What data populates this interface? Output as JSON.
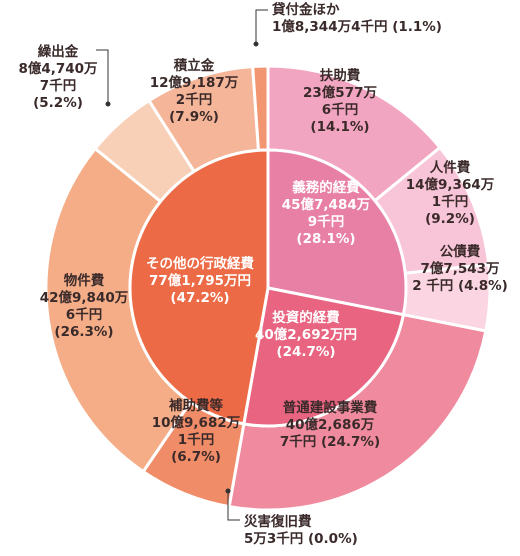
{
  "chart_data": {
    "type": "pie",
    "variant": "two-level donut",
    "title": "",
    "inner": [
      {
        "name": "義務的経費",
        "amount": "45億7,484万",
        "amount2": "9千円",
        "percent": "(28.1%)",
        "value": 28.1,
        "color": "#E87FA4"
      },
      {
        "name": "投資的経費",
        "amount": "40億2,692万円",
        "amount2": "",
        "percent": "(24.7%)",
        "value": 24.7,
        "color": "#E86480"
      },
      {
        "name": "その他の行政経費",
        "amount": "77億1,795万円",
        "amount2": "",
        "percent": "(47.2%)",
        "value": 47.2,
        "color": "#EC6A45"
      }
    ],
    "outer": [
      {
        "name": "扶助費",
        "lines": [
          "23億577万",
          "6千円",
          "(14.1%)"
        ],
        "value": 14.1,
        "color": "#F2A5C0"
      },
      {
        "name": "人件費",
        "lines": [
          "14億9,364万",
          "1千円",
          "(9.2%)"
        ],
        "value": 9.2,
        "color": "#F8C4D7"
      },
      {
        "name": "公債費",
        "lines": [
          "7億7,543万",
          "2 千円 (4.8%)"
        ],
        "value": 4.8,
        "color": "#FBD5E2"
      },
      {
        "name": "普通建設事業費",
        "lines": [
          "40億2,686万",
          "7千円 (24.7%)"
        ],
        "value": 24.7,
        "color": "#F08A9E"
      },
      {
        "name": "災害復旧費",
        "lines": [
          "5万3千円 (0.0%)"
        ],
        "value": 0.0,
        "color": "#F08A9E"
      },
      {
        "name": "補助費等",
        "lines": [
          "10億9,682万",
          "1千円",
          "(6.7%)"
        ],
        "value": 6.7,
        "color": "#F08C67"
      },
      {
        "name": "物件費",
        "lines": [
          "42億9,840万",
          "6千円",
          "(26.3%)"
        ],
        "value": 26.3,
        "color": "#F4AD87"
      },
      {
        "name": "繰出金",
        "lines": [
          "8億4,740万",
          "7千円",
          "(5.2%)"
        ],
        "value": 5.2,
        "color": "#F8CFB7"
      },
      {
        "name": "積立金",
        "lines": [
          "12億9,187万",
          "2千円",
          "(7.9%)"
        ],
        "value": 7.9,
        "color": "#F4B598"
      },
      {
        "name": "貸付金ほか",
        "lines": [
          "1億8,344万4千円 (1.1%)"
        ],
        "value": 1.1,
        "color": "#F29672"
      }
    ],
    "legend": "none"
  }
}
